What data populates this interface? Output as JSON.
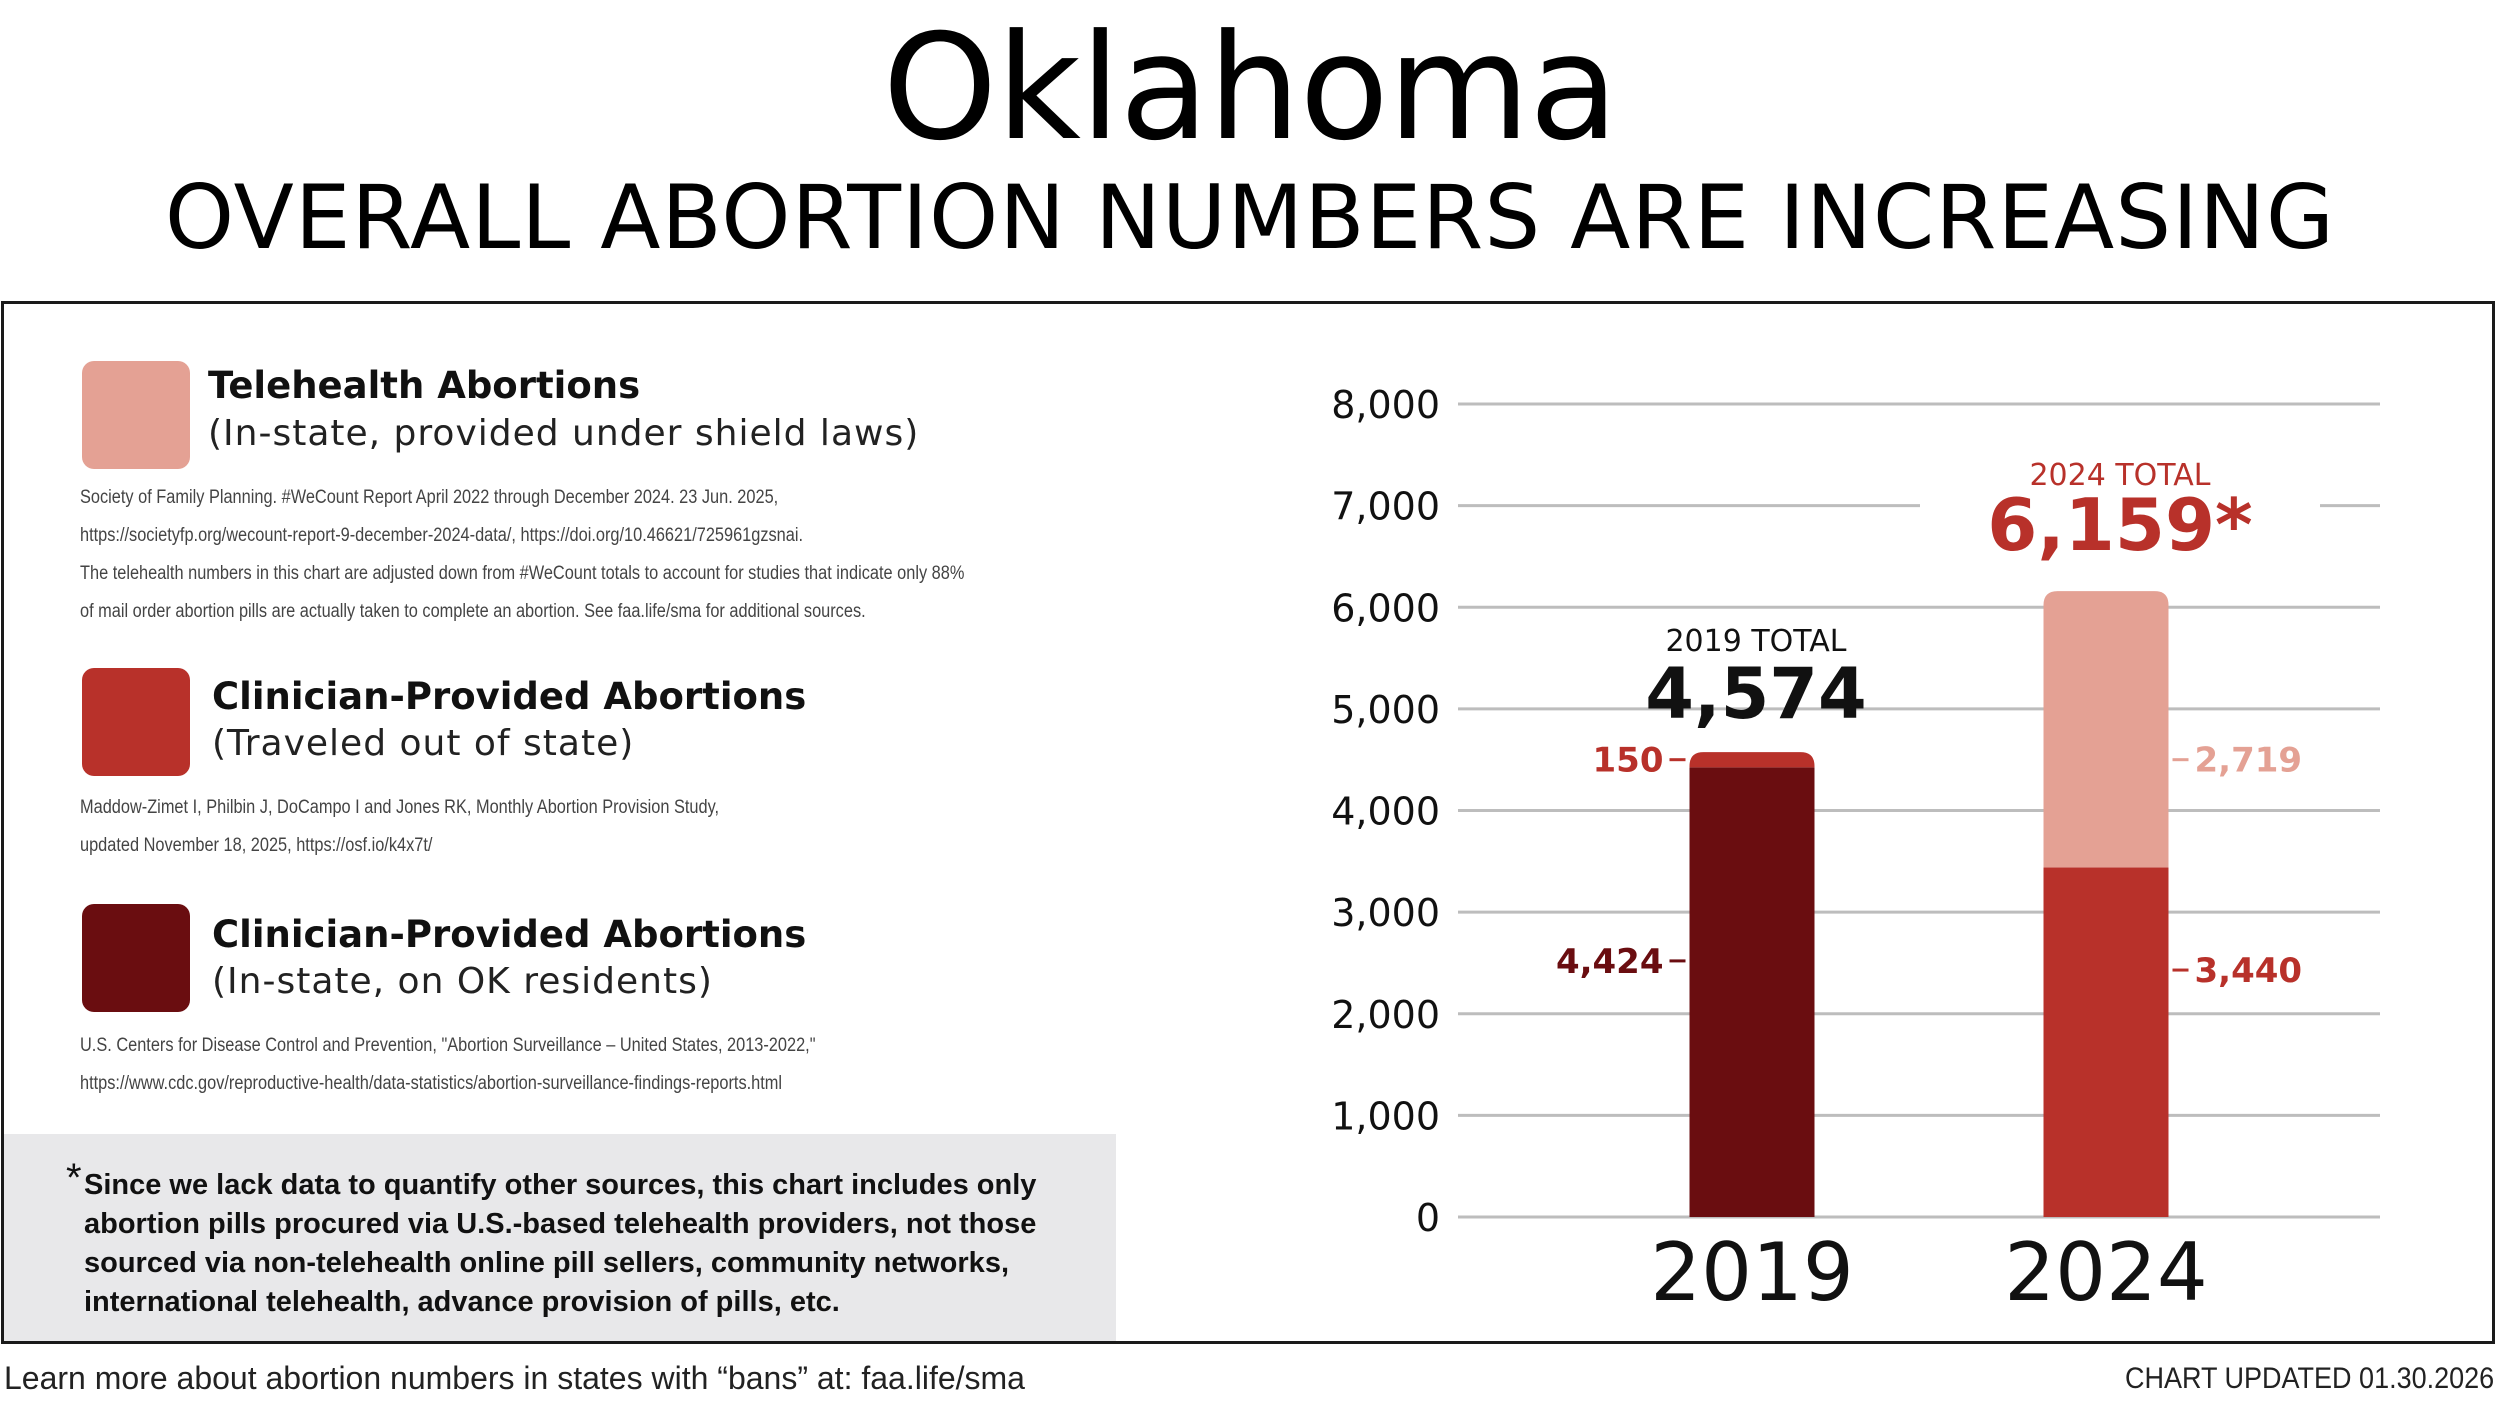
{
  "header": {
    "title": "Oklahoma",
    "subtitle": "OVERALL ABORTION NUMBERS ARE INCREASING"
  },
  "legend": [
    {
      "title": "Telehealth Abortions",
      "subtitle": "(In-state, provided under shield laws)",
      "color": "#e4a194",
      "source_lines": [
        "Society of Family Planning. #WeCount Report April 2022 through December 2024. 23 Jun. 2025,",
        "https://societyfp.org/wecount-report-9-december-2024-data/, https://doi.org/10.46621/725961gzsnai.",
        "The telehealth numbers in this chart are adjusted down from #WeCount totals to account for studies that indicate only 88%",
        "of mail order abortion pills are actually taken to complete an abortion. See faa.life/sma for additional sources."
      ]
    },
    {
      "title": "Clinician-Provided Abortions",
      "subtitle": "(Traveled out of state)",
      "color": "#b8312a",
      "source_lines": [
        "Maddow-Zimet I, Philbin J, DoCampo I and Jones RK, Monthly Abortion Provision Study,",
        "updated November 18, 2025, https://osf.io/k4x7t/"
      ]
    },
    {
      "title": "Clinician-Provided Abortions",
      "subtitle": "(In-state, on OK residents)",
      "color": "#6a0d10",
      "source_lines": [
        "U.S. Centers for Disease Control and Prevention, \"Abortion Surveillance – United States, 2013-2022,\"",
        "https://www.cdc.gov/reproductive-health/data-statistics/abortion-surveillance-findings-reports.html"
      ]
    }
  ],
  "footnote": {
    "star": "*",
    "text": "Since we lack data to quantify other sources, this chart includes only abortion pills procured via U.S.-based telehealth providers, not those sourced via non-telehealth online pill sellers, community networks, international telehealth, advance provision of pills, etc."
  },
  "footer": {
    "left": "Learn more about abortion numbers in states with “bans” at: faa.life/sma",
    "right": "CHART UPDATED 01.30.2026"
  },
  "chart_data": {
    "type": "bar",
    "stacked": true,
    "title": "OVERALL ABORTION NUMBERS ARE INCREASING",
    "categories": [
      "2019",
      "2024"
    ],
    "ylim": [
      0,
      8000
    ],
    "yticks": [
      0,
      1000,
      2000,
      3000,
      4000,
      5000,
      6000,
      7000,
      8000
    ],
    "ytick_labels": [
      "0",
      "1,000",
      "2,000",
      "3,000",
      "4,000",
      "5,000",
      "6,000",
      "7,000",
      "8,000"
    ],
    "grid": true,
    "series": [
      {
        "name": "Clinician-Provided Abortions (In-state, on OK residents)",
        "color": "#6a0d10",
        "values": [
          4424,
          0
        ],
        "labels": [
          "4,424",
          ""
        ],
        "label_color": "#6a0d10"
      },
      {
        "name": "Clinician-Provided Abortions (Traveled out of state)",
        "color": "#b8312a",
        "values": [
          150,
          3440
        ],
        "labels": [
          "150",
          "3,440"
        ],
        "label_color": "#b8312a"
      },
      {
        "name": "Telehealth Abortions (In-state, provided under shield laws)",
        "color": "#e4a194",
        "values": [
          0,
          2719
        ],
        "labels": [
          "",
          "2,719"
        ],
        "label_color": "#e4a194"
      }
    ],
    "totals": [
      {
        "label": "2019 TOTAL",
        "value": "4,574",
        "label_color": "#111111",
        "value_color": "#111111"
      },
      {
        "label": "2024 TOTAL",
        "value": "6,159*",
        "label_color": "#b8312a",
        "value_color": "#b8312a"
      }
    ]
  }
}
